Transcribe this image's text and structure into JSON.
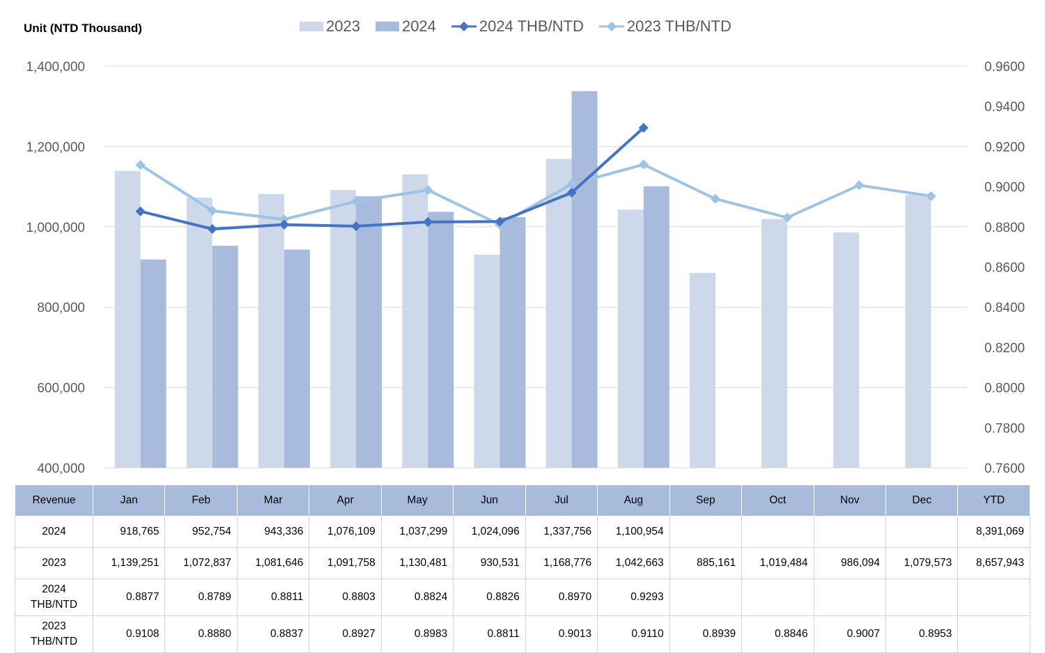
{
  "unit_label": "Unit (NTD  Thousand)",
  "legend": [
    {
      "label": "2023",
      "kind": "bar",
      "color": "#cdd8ea"
    },
    {
      "label": "2024",
      "kind": "bar",
      "color": "#a8bbdc"
    },
    {
      "label": "2024 THB/NTD",
      "kind": "line",
      "color": "#4472c4"
    },
    {
      "label": "2023 THB/NTD",
      "kind": "line",
      "color": "#9dc3e6"
    }
  ],
  "chart_data": {
    "type": "bar",
    "categories": [
      "Jan",
      "Feb",
      "Mar",
      "Apr",
      "May",
      "Jun",
      "Jul",
      "Aug",
      "Sep",
      "Oct",
      "Nov",
      "Dec"
    ],
    "left_axis": {
      "min": 400000,
      "max": 1400000,
      "ticks": [
        "1,400,000",
        "1,200,000",
        "1,000,000",
        "800,000",
        "600,000",
        "400,000"
      ]
    },
    "right_axis": {
      "min": 0.76,
      "max": 0.96,
      "ticks": [
        "0.9600",
        "0.9400",
        "0.9200",
        "0.9000",
        "0.8800",
        "0.8600",
        "0.8400",
        "0.8200",
        "0.8000",
        "0.7800",
        "0.7600"
      ]
    },
    "gridlines": true,
    "series": [
      {
        "name": "2023",
        "type": "bar",
        "axis": "left",
        "color": "#cdd8ea",
        "values": [
          1139251,
          1072837,
          1081646,
          1091758,
          1130481,
          930531,
          1168776,
          1042663,
          885161,
          1019484,
          986094,
          1079573
        ]
      },
      {
        "name": "2024",
        "type": "bar",
        "axis": "left",
        "color": "#a8bbdc",
        "values": [
          918765,
          952754,
          943336,
          1076109,
          1037299,
          1024096,
          1337756,
          1100954,
          null,
          null,
          null,
          null
        ]
      },
      {
        "name": "2024 THB/NTD",
        "type": "line",
        "axis": "right",
        "color": "#4472c4",
        "values": [
          0.8877,
          0.8789,
          0.8811,
          0.8803,
          0.8824,
          0.8826,
          0.897,
          0.9293,
          null,
          null,
          null,
          null
        ]
      },
      {
        "name": "2023 THB/NTD",
        "type": "line",
        "axis": "right",
        "color": "#9dc3e6",
        "values": [
          0.9108,
          0.888,
          0.8837,
          0.8927,
          0.8983,
          0.8811,
          0.9013,
          0.911,
          0.8939,
          0.8846,
          0.9007,
          0.8953
        ]
      }
    ]
  },
  "table": {
    "header": [
      "Revenue",
      "Jan",
      "Feb",
      "Mar",
      "Apr",
      "May",
      "Jun",
      "Jul",
      "Aug",
      "Sep",
      "Oct",
      "Nov",
      "Dec",
      "YTD"
    ],
    "rows": [
      {
        "label": "2024",
        "cells": [
          "918,765",
          "952,754",
          "943,336",
          "1,076,109",
          "1,037,299",
          "1,024,096",
          "1,337,756",
          "1,100,954",
          "",
          "",
          "",
          "",
          "8,391,069"
        ]
      },
      {
        "label": "2023",
        "cells": [
          "1,139,251",
          "1,072,837",
          "1,081,646",
          "1,091,758",
          "1,130,481",
          "930,531",
          "1,168,776",
          "1,042,663",
          "885,161",
          "1,019,484",
          "986,094",
          "1,079,573",
          "8,657,943"
        ]
      },
      {
        "label_lines": [
          "2024",
          "THB/NTD"
        ],
        "cells": [
          "0.8877",
          "0.8789",
          "0.8811",
          "0.8803",
          "0.8824",
          "0.8826",
          "0.8970",
          "0.9293",
          "",
          "",
          "",
          "",
          ""
        ]
      },
      {
        "label_lines": [
          "2023",
          "THB/NTD"
        ],
        "cells": [
          "0.9108",
          "0.8880",
          "0.8837",
          "0.8927",
          "0.8983",
          "0.8811",
          "0.9013",
          "0.9110",
          "0.8939",
          "0.8846",
          "0.9007",
          "0.8953",
          ""
        ]
      }
    ]
  }
}
